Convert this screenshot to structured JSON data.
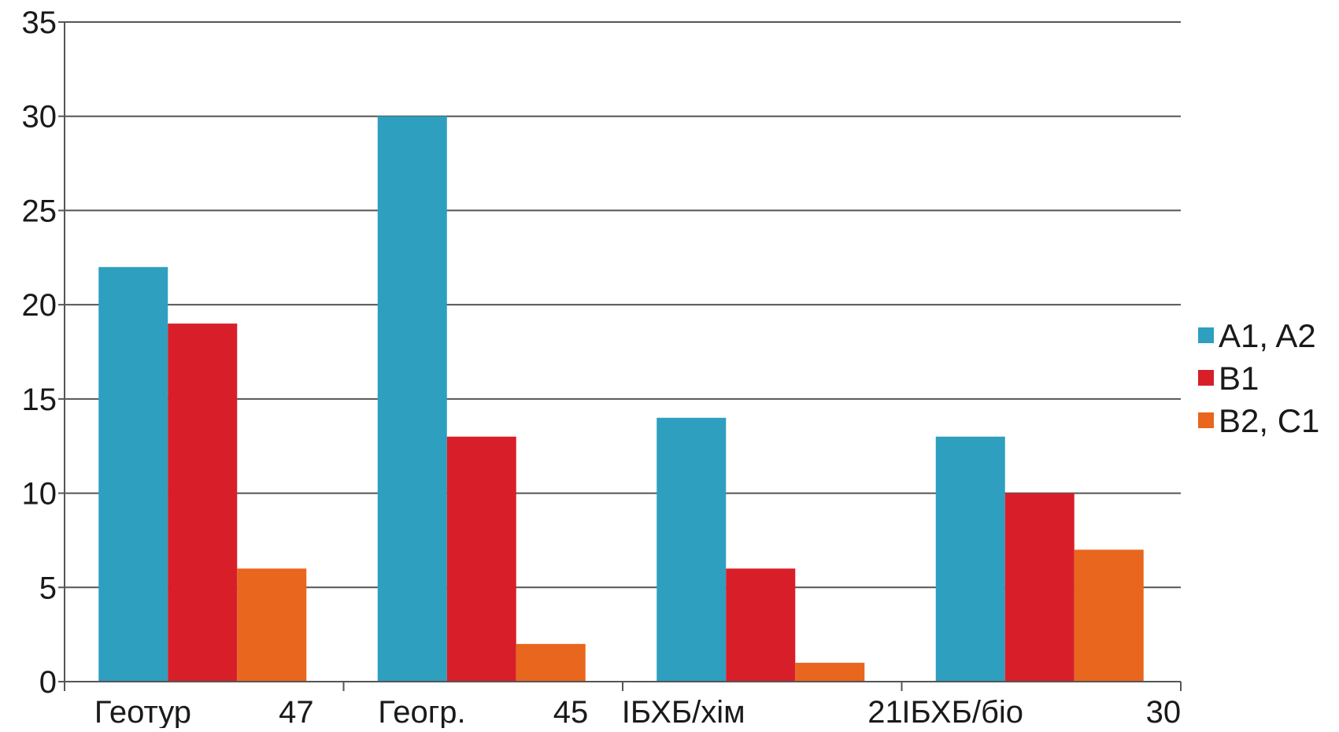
{
  "chart_data": {
    "type": "bar",
    "categories": [
      "Геотур          47",
      "Геогр.          45",
      "ІБХБ/хім              21",
      "ІБХБ/біо              30"
    ],
    "series": [
      {
        "name": "A1, A2",
        "color": "#2e9fbf",
        "values": [
          22,
          30,
          14,
          13
        ]
      },
      {
        "name": "B1",
        "color": "#d81f29",
        "values": [
          19,
          13,
          6,
          10
        ]
      },
      {
        "name": "B2, C1",
        "color": "#e8661e",
        "values": [
          6,
          2,
          1,
          7
        ]
      }
    ],
    "yticks": [
      "0",
      "5",
      "10",
      "15",
      "20",
      "25",
      "30",
      "35"
    ],
    "ylim": [
      0,
      35
    ],
    "ystep": 5,
    "grid": true,
    "legend_position": "right",
    "gridline_color": "#555555",
    "axis_color": "#555555"
  }
}
